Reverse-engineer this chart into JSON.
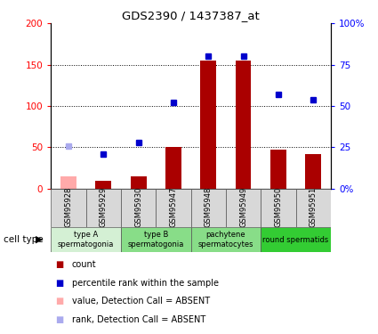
{
  "title": "GDS2390 / 1437387_at",
  "samples": [
    "GSM95928",
    "GSM95929",
    "GSM95930",
    "GSM95947",
    "GSM95948",
    "GSM95949",
    "GSM95950",
    "GSM95951"
  ],
  "bar_values": [
    15,
    10,
    15,
    50,
    155,
    155,
    47,
    42
  ],
  "bar_absent": [
    true,
    false,
    false,
    false,
    false,
    false,
    false,
    false
  ],
  "rank_values": [
    26,
    21,
    28,
    52,
    80,
    80,
    57,
    54
  ],
  "rank_absent": [
    true,
    false,
    false,
    false,
    false,
    false,
    false,
    false
  ],
  "cell_types": [
    {
      "label": "type A\nspermatogonia",
      "start": 0,
      "end": 2,
      "color": "#d4f0d4"
    },
    {
      "label": "type B\nspermatogonia",
      "start": 2,
      "end": 4,
      "color": "#88dd88"
    },
    {
      "label": "pachytene\nspermatocytes",
      "start": 4,
      "end": 6,
      "color": "#88dd88"
    },
    {
      "label": "round spermatids",
      "start": 6,
      "end": 8,
      "color": "#33cc33"
    }
  ],
  "bar_color_present": "#aa0000",
  "bar_color_absent": "#ffaaaa",
  "rank_color_present": "#0000cc",
  "rank_color_absent": "#aaaaee",
  "ylim_left": [
    0,
    200
  ],
  "ylim_right": [
    0,
    100
  ],
  "yticks_left": [
    0,
    50,
    100,
    150,
    200
  ],
  "yticks_left_labels": [
    "0",
    "50",
    "100",
    "150",
    "200"
  ],
  "yticks_right": [
    0,
    25,
    50,
    75,
    100
  ],
  "yticks_right_labels": [
    "0%",
    "25",
    "50",
    "75",
    "100%"
  ],
  "legend_items": [
    {
      "label": "count",
      "color": "#aa0000"
    },
    {
      "label": "percentile rank within the sample",
      "color": "#0000cc"
    },
    {
      "label": "value, Detection Call = ABSENT",
      "color": "#ffaaaa"
    },
    {
      "label": "rank, Detection Call = ABSENT",
      "color": "#aaaaee"
    }
  ]
}
